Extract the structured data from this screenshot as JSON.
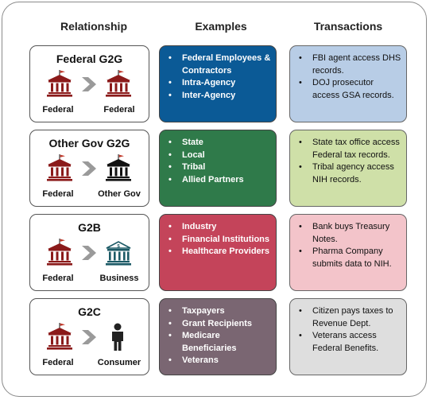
{
  "headers": {
    "relationship": "Relationship",
    "examples": "Examples",
    "transactions": "Transactions"
  },
  "colors": {
    "federal_building": "#8b1a1a",
    "other_gov_building": "#111111",
    "business_building": "#1c5a66",
    "consumer": "#222222",
    "arrow": "#9a9a9a"
  },
  "rows": [
    {
      "title": "Federal G2G",
      "from_label": "Federal",
      "to_label": "Federal",
      "to_icon": "federal-building-icon",
      "examples_color": "#0b5a96",
      "examples": [
        "Federal Employees & Contractors",
        "Intra-Agency",
        "Inter-Agency"
      ],
      "transactions_color": "#b8cde6",
      "transactions": [
        "FBI agent access DHS records.",
        "DOJ prosecutor access GSA records."
      ]
    },
    {
      "title": "Other Gov G2G",
      "from_label": "Federal",
      "to_label": "Other Gov",
      "to_icon": "government-building-icon",
      "examples_color": "#2f7a4a",
      "examples": [
        "State",
        "Local",
        "Tribal",
        "Allied Partners"
      ],
      "transactions_color": "#cfe0a8",
      "transactions": [
        "State tax office access Federal tax records.",
        "Tribal agency access NIH records."
      ]
    },
    {
      "title": "G2B",
      "from_label": "Federal",
      "to_label": "Business",
      "to_icon": "business-building-icon",
      "examples_color": "#c4445a",
      "examples": [
        "Industry",
        "Financial Institutions",
        "Healthcare Providers"
      ],
      "transactions_color": "#f3c4ca",
      "transactions": [
        "Bank buys Treasury Notes.",
        "Pharma Company submits data to NIH."
      ]
    },
    {
      "title": "G2C",
      "from_label": "Federal",
      "to_label": "Consumer",
      "to_icon": "person-icon",
      "examples_color": "#7a6672",
      "examples": [
        "Taxpayers",
        "Grant Recipients",
        "Medicare Beneficiaries",
        "Veterans"
      ],
      "transactions_color": "#dedede",
      "transactions": [
        "Citizen pays taxes to Revenue Dept.",
        "Veterans access Federal Benefits."
      ]
    }
  ]
}
